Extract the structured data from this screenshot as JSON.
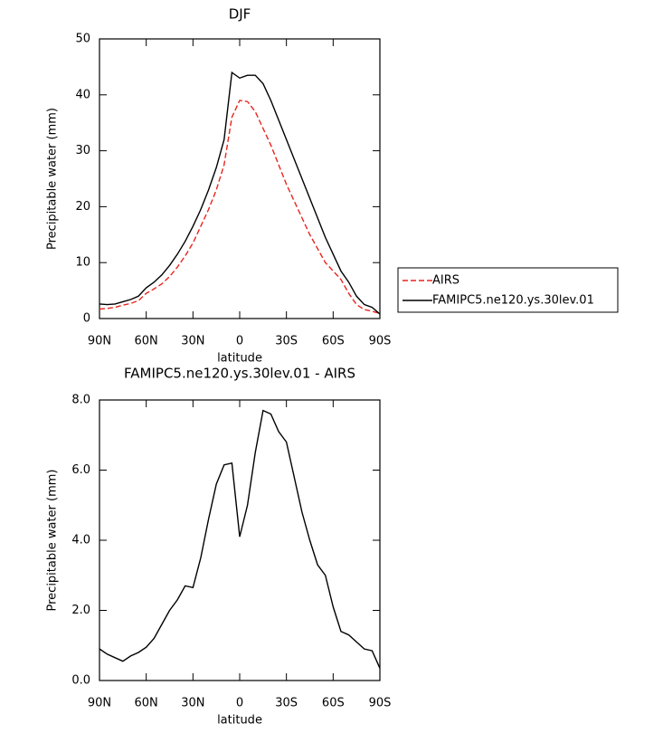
{
  "chart_data": [
    {
      "type": "line",
      "title": "DJF",
      "x_label": "latitude",
      "y_label": "Precipitable water (mm)",
      "x": [
        90,
        85,
        80,
        75,
        70,
        65,
        60,
        55,
        50,
        45,
        40,
        35,
        30,
        25,
        20,
        15,
        10,
        5,
        0,
        -5,
        -10,
        -15,
        -20,
        -25,
        -30,
        -35,
        -40,
        -45,
        -50,
        -55,
        -60,
        -65,
        -70,
        -75,
        -80,
        -85,
        -90
      ],
      "xlim": [
        90,
        -90
      ],
      "xticks": [
        {
          "value": 90,
          "label": "90N"
        },
        {
          "value": 60,
          "label": "60N"
        },
        {
          "value": 30,
          "label": "30N"
        },
        0,
        {
          "value": -30,
          "label": "30S"
        },
        {
          "value": -60,
          "label": "60S"
        },
        {
          "value": -90,
          "label": "90S"
        }
      ],
      "ylim": [
        0,
        50
      ],
      "yticks": [
        0,
        10,
        20,
        30,
        40,
        50
      ],
      "legend": "outside-right",
      "series": [
        {
          "name": "AIRS",
          "color": "#e8251f",
          "style": "dashed",
          "values": [
            1.7,
            1.8,
            2.0,
            2.4,
            2.7,
            3.2,
            4.5,
            5.3,
            6.2,
            7.5,
            9.2,
            11.2,
            13.5,
            16.5,
            19.5,
            23,
            27.5,
            36,
            39,
            38.8,
            37,
            34,
            31,
            27.5,
            24,
            21,
            18,
            15,
            12.5,
            10,
            8.5,
            7,
            4.5,
            2.5,
            1.6,
            1.3,
            0.9
          ]
        },
        {
          "name": "FAMIPC5.ne120.ys.30lev.01",
          "color": "#000000",
          "style": "solid",
          "values": [
            2.6,
            2.5,
            2.6,
            3.0,
            3.4,
            4.0,
            5.5,
            6.5,
            7.8,
            9.5,
            11.5,
            13.8,
            16.5,
            19.5,
            23,
            27,
            32,
            44,
            43,
            43.5,
            43.5,
            42,
            39,
            35.5,
            32,
            28.5,
            25,
            21.5,
            18,
            14.5,
            11.5,
            8.5,
            6.5,
            4,
            2.5,
            2.0,
            0.8
          ]
        }
      ]
    },
    {
      "type": "line",
      "title": "FAMIPC5.ne120.ys.30lev.01 - AIRS",
      "x_label": "latitude",
      "y_label": "Precipitable water (mm)",
      "x": [
        90,
        85,
        80,
        75,
        70,
        65,
        60,
        55,
        50,
        45,
        40,
        35,
        30,
        25,
        20,
        15,
        10,
        5,
        0,
        -5,
        -10,
        -15,
        -20,
        -25,
        -30,
        -35,
        -40,
        -45,
        -50,
        -55,
        -60,
        -65,
        -70,
        -75,
        -80,
        -85,
        -90
      ],
      "xlim": [
        90,
        -90
      ],
      "xticks": [
        {
          "value": 90,
          "label": "90N"
        },
        {
          "value": 60,
          "label": "60N"
        },
        {
          "value": 30,
          "label": "30N"
        },
        0,
        {
          "value": -30,
          "label": "30S"
        },
        {
          "value": -60,
          "label": "60S"
        },
        {
          "value": -90,
          "label": "90S"
        }
      ],
      "ylim": [
        0,
        8
      ],
      "yticks": [
        {
          "value": 0,
          "label": "0.0"
        },
        {
          "value": 2,
          "label": "2.0"
        },
        {
          "value": 4,
          "label": "4.0"
        },
        {
          "value": 6,
          "label": "6.0"
        },
        {
          "value": 8,
          "label": "8.0"
        }
      ],
      "color": "#000000",
      "values": [
        0.9,
        0.75,
        0.65,
        0.55,
        0.7,
        0.8,
        0.95,
        1.2,
        1.6,
        2.0,
        2.3,
        2.7,
        2.65,
        3.5,
        4.6,
        5.6,
        6.15,
        6.2,
        4.1,
        5.0,
        6.5,
        7.7,
        7.6,
        7.1,
        6.8,
        5.8,
        4.8,
        4.0,
        3.3,
        3.0,
        2.1,
        1.4,
        1.3,
        1.1,
        0.9,
        0.85,
        0.35
      ]
    }
  ]
}
